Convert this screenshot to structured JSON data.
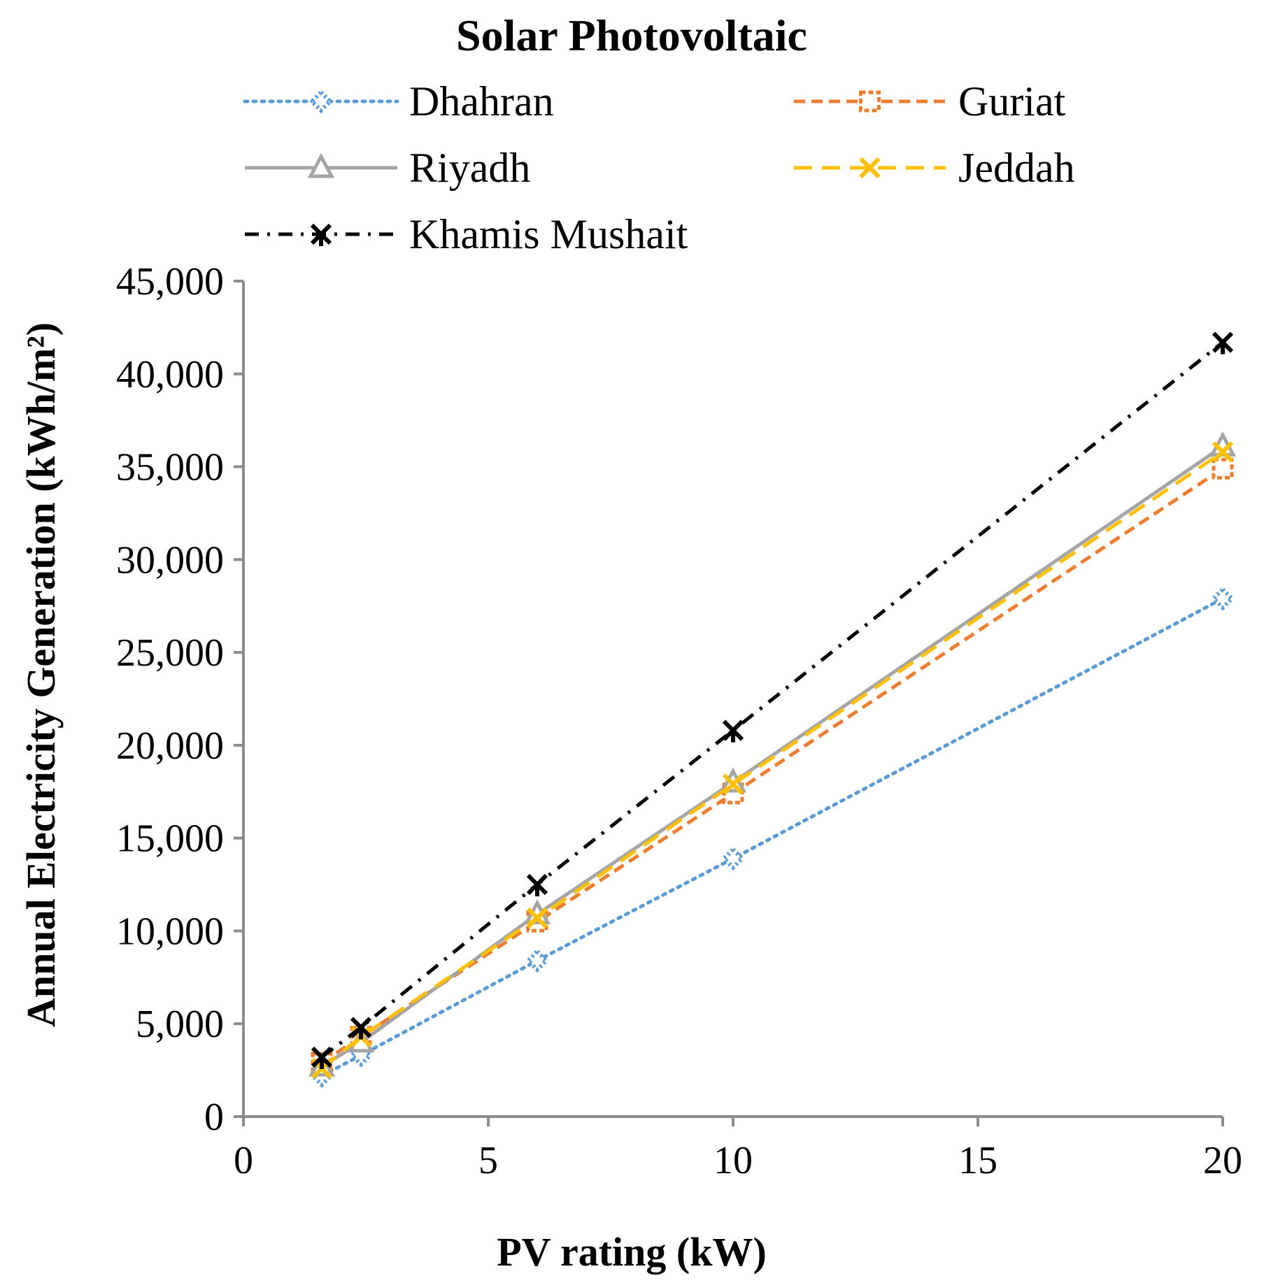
{
  "chart_data": {
    "type": "line",
    "title": "Solar Photovoltaic",
    "xlabel": "PV rating (kW)",
    "ylabel": "Annual Electricity Generation (kWh/m²)",
    "xlim": [
      0,
      20
    ],
    "ylim": [
      0,
      45000
    ],
    "x_ticks": [
      0,
      5,
      10,
      15,
      20
    ],
    "y_ticks": [
      0,
      5000,
      10000,
      15000,
      20000,
      25000,
      30000,
      35000,
      40000,
      45000
    ],
    "x_tick_labels": [
      "0",
      "5",
      "10",
      "15",
      "20"
    ],
    "y_tick_labels": [
      "0",
      "5,000",
      "10,000",
      "15,000",
      "20,000",
      "25,000",
      "30,000",
      "35,000",
      "40,000",
      "45,000"
    ],
    "grid": false,
    "legend_position": "top",
    "x": [
      1.6,
      2.4,
      6,
      10,
      20
    ],
    "series": [
      {
        "name": "Dhahran",
        "values": [
          2200,
          3300,
          8400,
          13900,
          27900
        ],
        "color": "#5b9bd5",
        "marker": "diamond",
        "dash": "dotted"
      },
      {
        "name": "Guriat",
        "values": [
          2900,
          4300,
          10500,
          17400,
          34900
        ],
        "color": "#ed7d31",
        "marker": "square",
        "dash": "dashed"
      },
      {
        "name": "Riyadh",
        "values": [
          2700,
          4000,
          10900,
          18000,
          36100
        ],
        "color": "#a5a5a5",
        "marker": "triangle",
        "dash": "solid"
      },
      {
        "name": "Jeddah",
        "values": [
          2600,
          4300,
          10700,
          17900,
          35800
        ],
        "color": "#ffc000",
        "marker": "x",
        "dash": "long-dash"
      },
      {
        "name": "Khamis Mushait",
        "values": [
          3200,
          4800,
          12500,
          20800,
          41700
        ],
        "color": "#000000",
        "marker": "star",
        "dash": "dash-dot"
      }
    ]
  }
}
